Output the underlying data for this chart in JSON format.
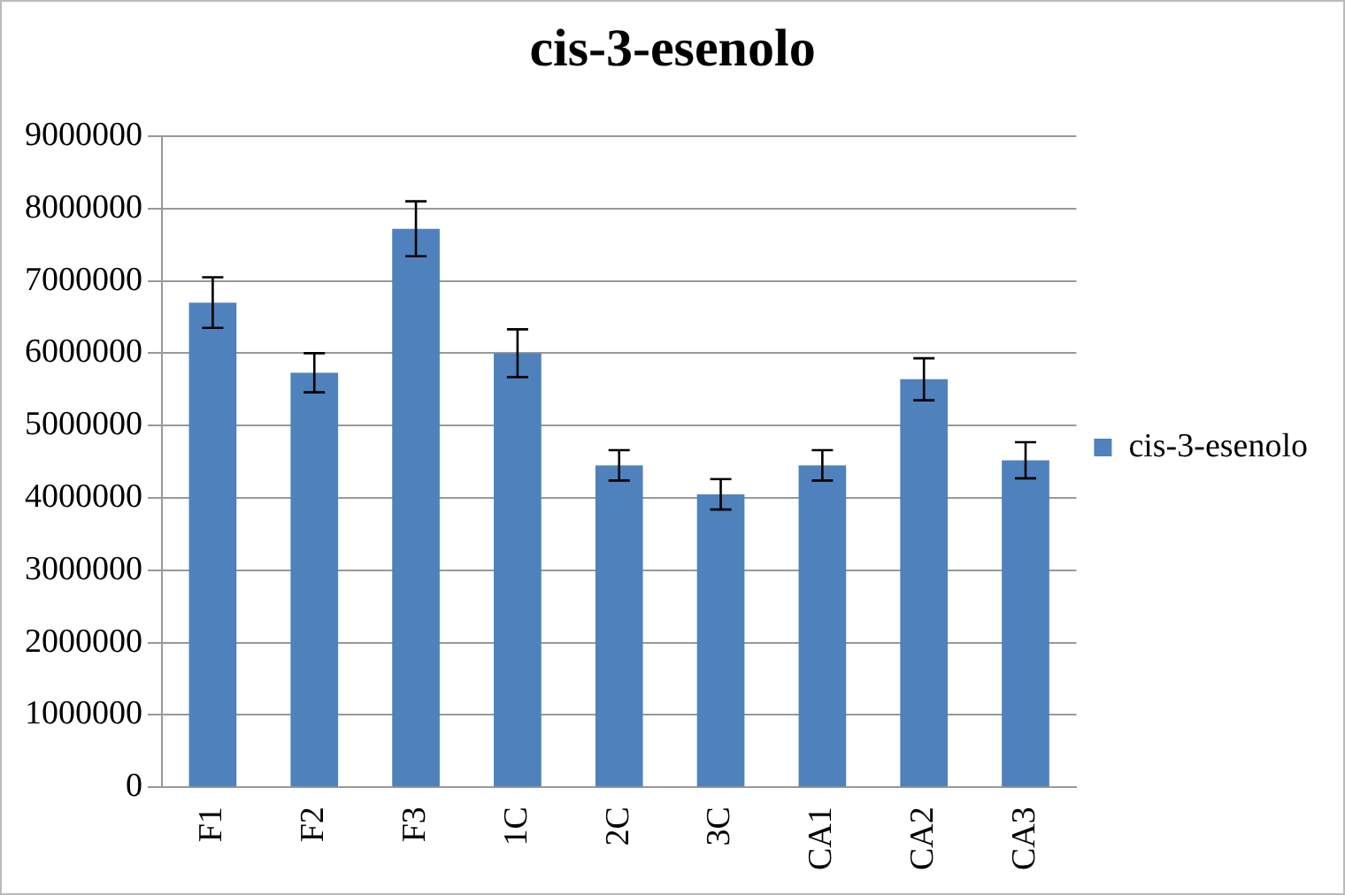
{
  "chart_data": {
    "type": "bar",
    "title": "cis-3-esenolo",
    "categories": [
      "F1",
      "F2",
      "F3",
      "1C",
      "2C",
      "3C",
      "CA1",
      "CA2",
      "CA3"
    ],
    "series": [
      {
        "name": "cis-3-esenolo",
        "color": "#4f81bd",
        "values": [
          6700000,
          5730000,
          7720000,
          6000000,
          4450000,
          4050000,
          4450000,
          5640000,
          4520000
        ],
        "errors": [
          350000,
          270000,
          380000,
          330000,
          210000,
          210000,
          210000,
          290000,
          250000
        ]
      }
    ],
    "ylim": [
      0,
      9000000
    ],
    "yticks": [
      0,
      1000000,
      2000000,
      3000000,
      4000000,
      5000000,
      6000000,
      7000000,
      8000000,
      9000000
    ],
    "grid": "y",
    "legend": "right"
  }
}
